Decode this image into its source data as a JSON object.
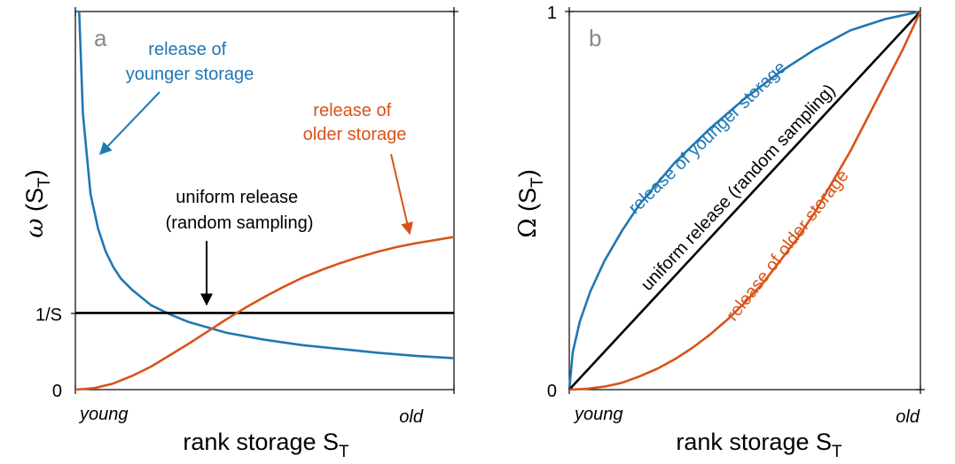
{
  "colors": {
    "blue": "#1f77b4",
    "orange": "#d95319",
    "black": "#000000",
    "panel_letter": "#888888"
  },
  "chart_data": [
    {
      "type": "line",
      "panel_label": "a",
      "ylabel": {
        "symbol": "ω",
        "arg": "(S",
        "sub": "T",
        "close": ")"
      },
      "xlabel": {
        "main": "rank storage S",
        "sub": "T"
      },
      "x_tick_labels": [
        "young",
        "old"
      ],
      "y_tick_labels": [
        "0",
        "1/S"
      ],
      "xlim": [
        0,
        1
      ],
      "ylim": [
        0,
        4.93
      ],
      "series": [
        {
          "name_lines": [
            "release of",
            "younger storage"
          ],
          "color": "#1f77b4",
          "x": [
            0.01,
            0.02,
            0.04,
            0.06,
            0.08,
            0.1,
            0.12,
            0.15,
            0.2,
            0.25,
            0.3,
            0.4,
            0.5,
            0.6,
            0.7,
            0.8,
            0.9,
            1.0
          ],
          "y": [
            4.95,
            3.6,
            2.55,
            2.1,
            1.8,
            1.6,
            1.45,
            1.3,
            1.1,
            0.98,
            0.88,
            0.74,
            0.65,
            0.58,
            0.53,
            0.48,
            0.44,
            0.41
          ]
        },
        {
          "name_lines": [
            "uniform release",
            "(random sampling)"
          ],
          "color": "#000000",
          "x": [
            0,
            1
          ],
          "y": [
            1,
            1
          ]
        },
        {
          "name_lines": [
            "release of",
            "older storage"
          ],
          "color": "#d95319",
          "x": [
            0,
            0.05,
            0.1,
            0.15,
            0.2,
            0.25,
            0.3,
            0.35,
            0.4,
            0.45,
            0.5,
            0.55,
            0.6,
            0.65,
            0.7,
            0.75,
            0.8,
            0.85,
            0.9,
            0.95,
            1.0
          ],
          "y": [
            0,
            0.02,
            0.08,
            0.18,
            0.3,
            0.45,
            0.6,
            0.76,
            0.92,
            1.07,
            1.21,
            1.34,
            1.46,
            1.56,
            1.65,
            1.73,
            1.8,
            1.86,
            1.91,
            1.95,
            1.99
          ]
        }
      ]
    },
    {
      "type": "line",
      "panel_label": "b",
      "ylabel": {
        "symbol": "Ω",
        "arg": "(S",
        "sub": "T",
        "close": ")"
      },
      "xlabel": {
        "main": "rank storage S",
        "sub": "T"
      },
      "x_tick_labels": [
        "young",
        "old"
      ],
      "y_tick_labels": [
        "0",
        "1"
      ],
      "xlim": [
        0,
        1
      ],
      "ylim": [
        0,
        1
      ],
      "series": [
        {
          "name": "release of  younger storage",
          "color": "#1f77b4",
          "x": [
            0,
            0.01,
            0.03,
            0.06,
            0.1,
            0.15,
            0.2,
            0.3,
            0.4,
            0.5,
            0.6,
            0.7,
            0.8,
            0.9,
            1.0
          ],
          "y": [
            0,
            0.1,
            0.18,
            0.26,
            0.34,
            0.42,
            0.49,
            0.6,
            0.69,
            0.77,
            0.84,
            0.9,
            0.95,
            0.98,
            1.0
          ]
        },
        {
          "name": "uniform release  (random sampling)",
          "color": "#000000",
          "x": [
            0,
            1
          ],
          "y": [
            0,
            1
          ]
        },
        {
          "name": "release of  older storage",
          "color": "#d95319",
          "x": [
            0,
            0.05,
            0.1,
            0.15,
            0.2,
            0.25,
            0.3,
            0.35,
            0.4,
            0.45,
            0.5,
            0.55,
            0.6,
            0.65,
            0.7,
            0.75,
            0.8,
            0.85,
            0.9,
            0.95,
            1.0
          ],
          "y": [
            0,
            0.002,
            0.008,
            0.018,
            0.035,
            0.055,
            0.08,
            0.11,
            0.145,
            0.185,
            0.23,
            0.28,
            0.34,
            0.4,
            0.47,
            0.55,
            0.63,
            0.72,
            0.81,
            0.9,
            1.0
          ]
        }
      ]
    }
  ]
}
